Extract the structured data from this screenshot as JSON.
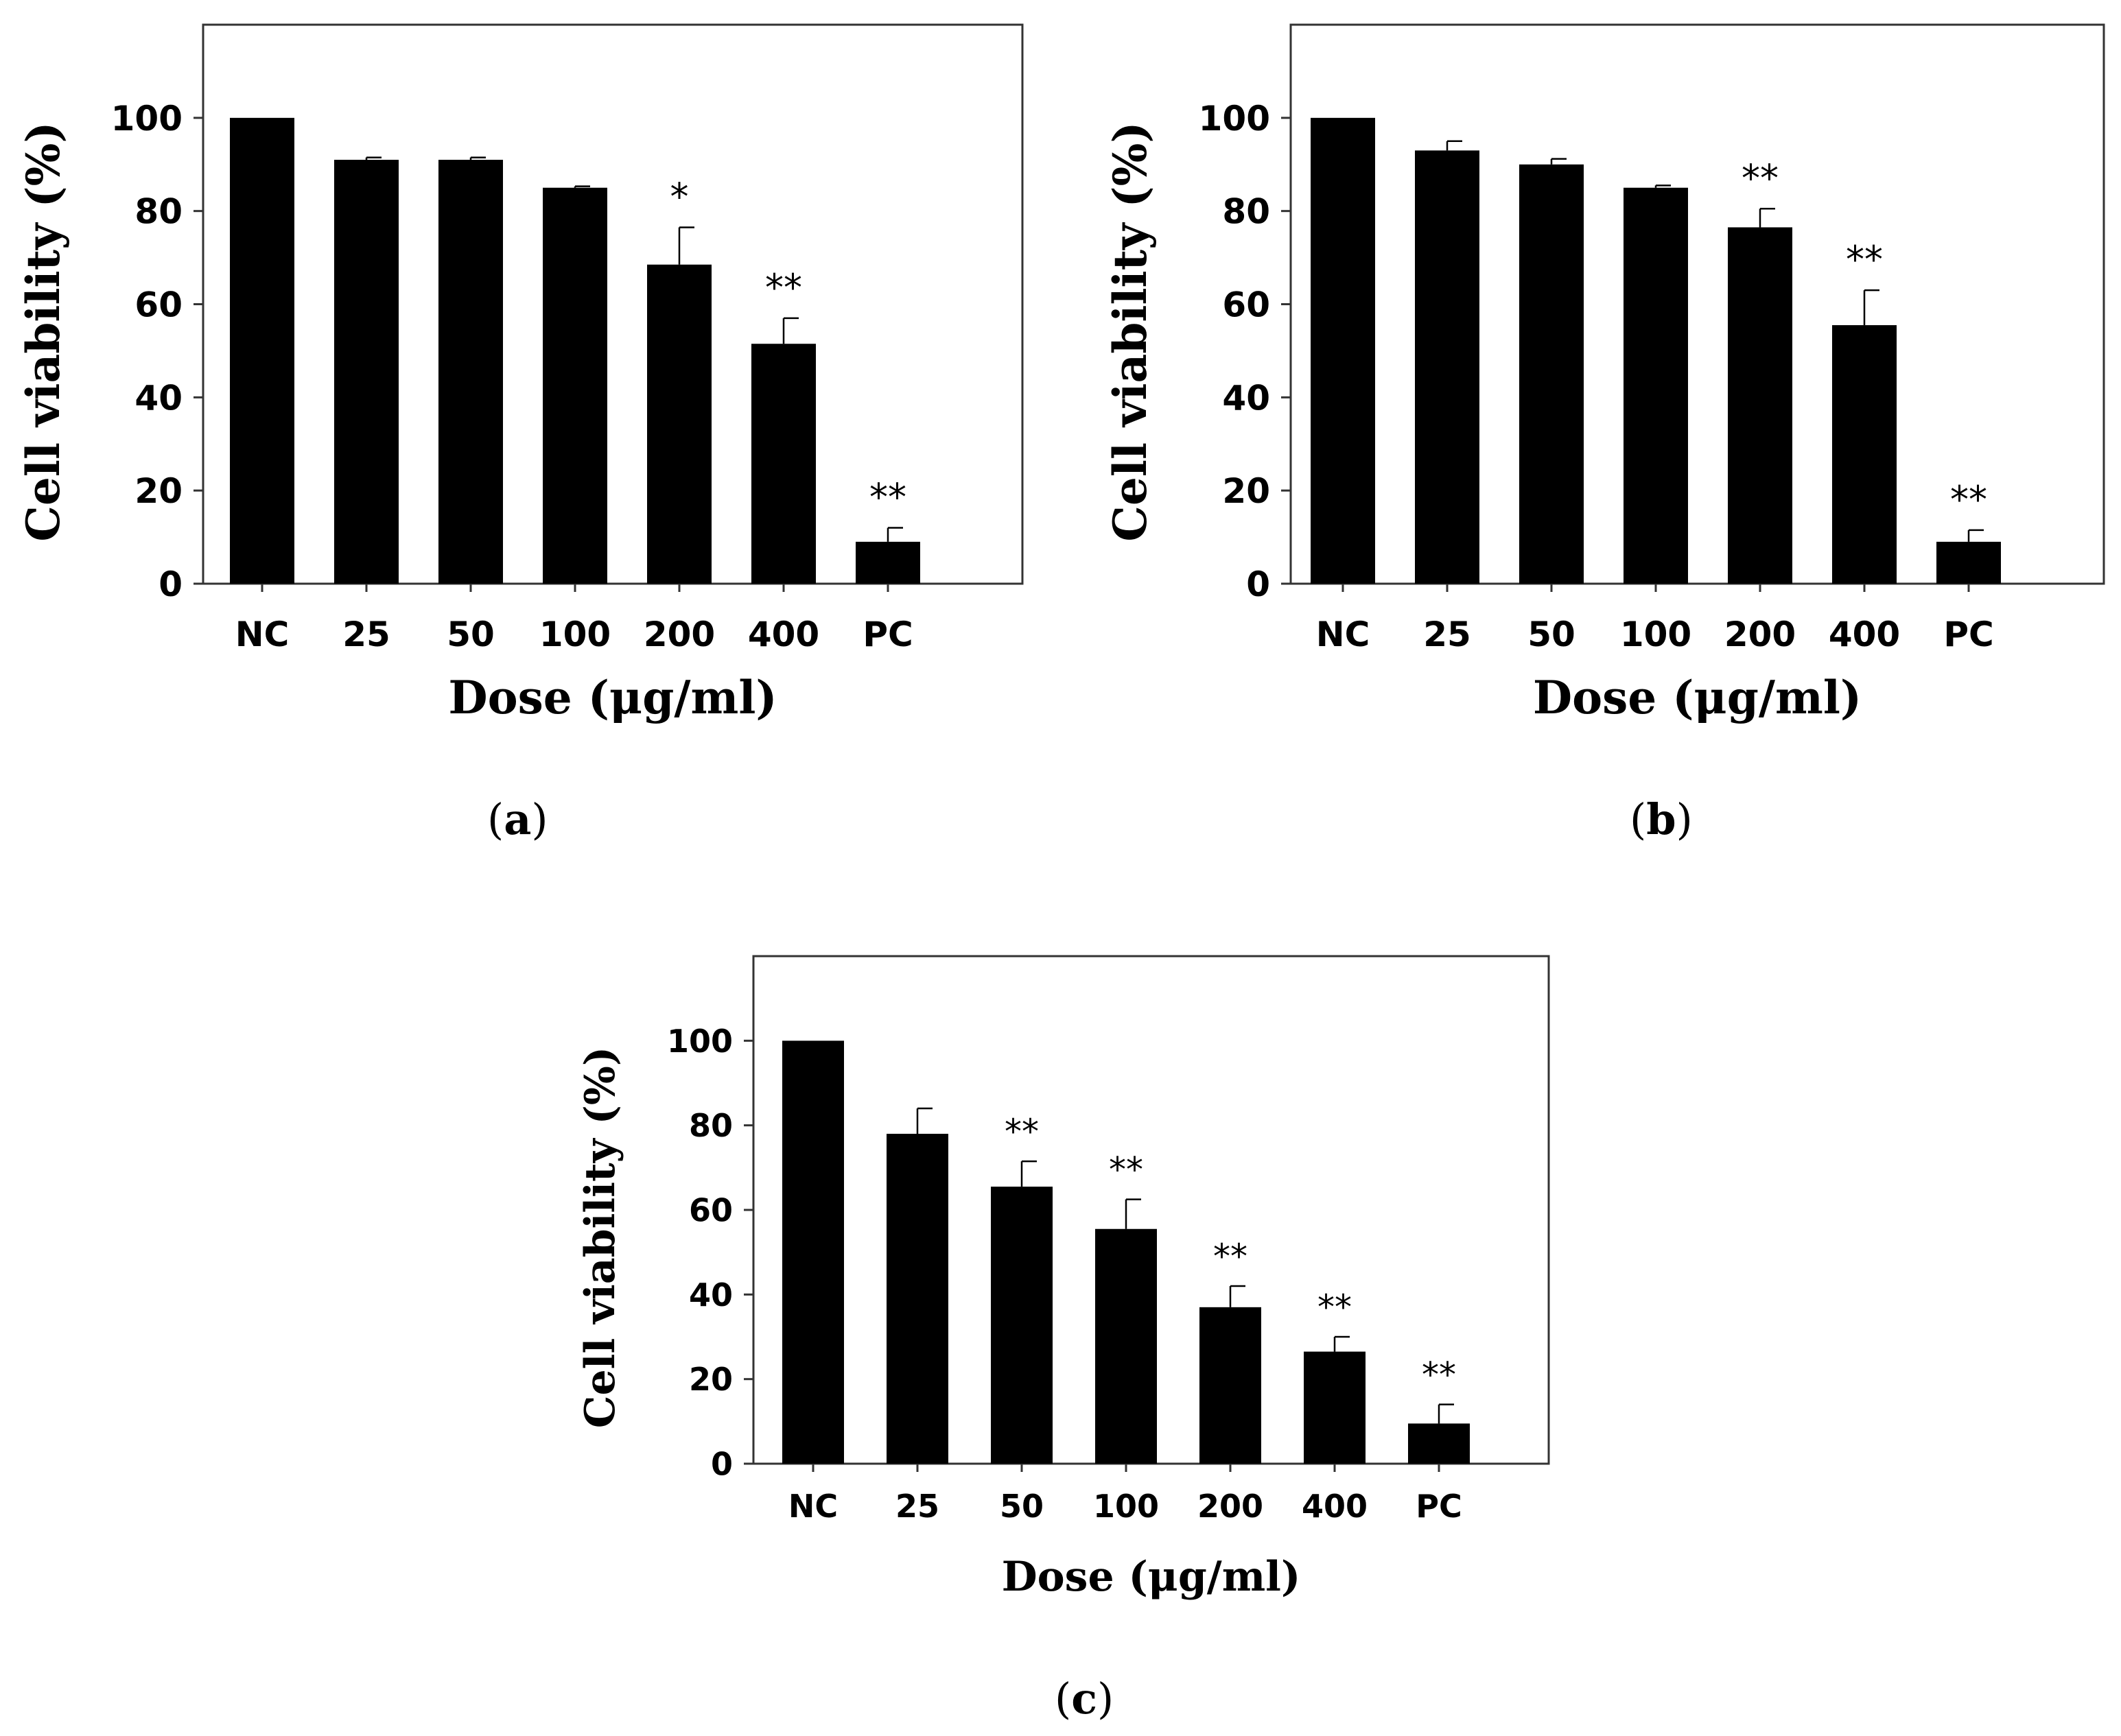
{
  "chart_data": [
    {
      "panel": "a",
      "type": "bar",
      "categories": [
        "NC",
        "25",
        "50",
        "100",
        "200",
        "400",
        "PC"
      ],
      "values": [
        100,
        91,
        91,
        85,
        68.5,
        51.5,
        9
      ],
      "errors": [
        0,
        0.5,
        0.5,
        0.3,
        8,
        5.5,
        3
      ],
      "significance": [
        "",
        "",
        "",
        "",
        "*",
        "**",
        "**"
      ],
      "title": "",
      "xlabel": "Dose (μg/ml)",
      "ylabel": "Cell viability (%)",
      "ylim": [
        0,
        120
      ],
      "yticks": [
        0,
        20,
        40,
        60,
        80,
        100
      ],
      "color": "#000000"
    },
    {
      "panel": "b",
      "type": "bar",
      "categories": [
        "NC",
        "25",
        "50",
        "100",
        "200",
        "400",
        "PC"
      ],
      "values": [
        100,
        93,
        90,
        85,
        76.5,
        55.5,
        9
      ],
      "errors": [
        0,
        2,
        1.2,
        0.5,
        4,
        7.5,
        2.5
      ],
      "significance": [
        "",
        "",
        "",
        "",
        "**",
        "**",
        "**"
      ],
      "title": "",
      "xlabel": "Dose (μg/ml)",
      "ylabel": "Cell viability (%)",
      "ylim": [
        0,
        120
      ],
      "yticks": [
        0,
        20,
        40,
        60,
        80,
        100
      ],
      "color": "#000000"
    },
    {
      "panel": "c",
      "type": "bar",
      "categories": [
        "NC",
        "25",
        "50",
        "100",
        "200",
        "400",
        "PC"
      ],
      "values": [
        100,
        78,
        65.5,
        55.5,
        37,
        26.5,
        9.5
      ],
      "errors": [
        0,
        6,
        6,
        7,
        5,
        3.5,
        4.5
      ],
      "significance": [
        "",
        "",
        "**",
        "**",
        "**",
        "**",
        "**"
      ],
      "title": "",
      "xlabel": "Dose (μg/ml)",
      "ylabel": "Cell viability (%)",
      "ylim": [
        0,
        120
      ],
      "yticks": [
        0,
        20,
        40,
        60,
        80,
        100
      ],
      "color": "#000000"
    }
  ],
  "panel_labels": {
    "a": {
      "open": "(",
      "letter": "a",
      "close": ")"
    },
    "b": {
      "open": "(",
      "letter": "b",
      "close": ")"
    },
    "c": {
      "open": "(",
      "letter": "c",
      "close": ")"
    }
  }
}
